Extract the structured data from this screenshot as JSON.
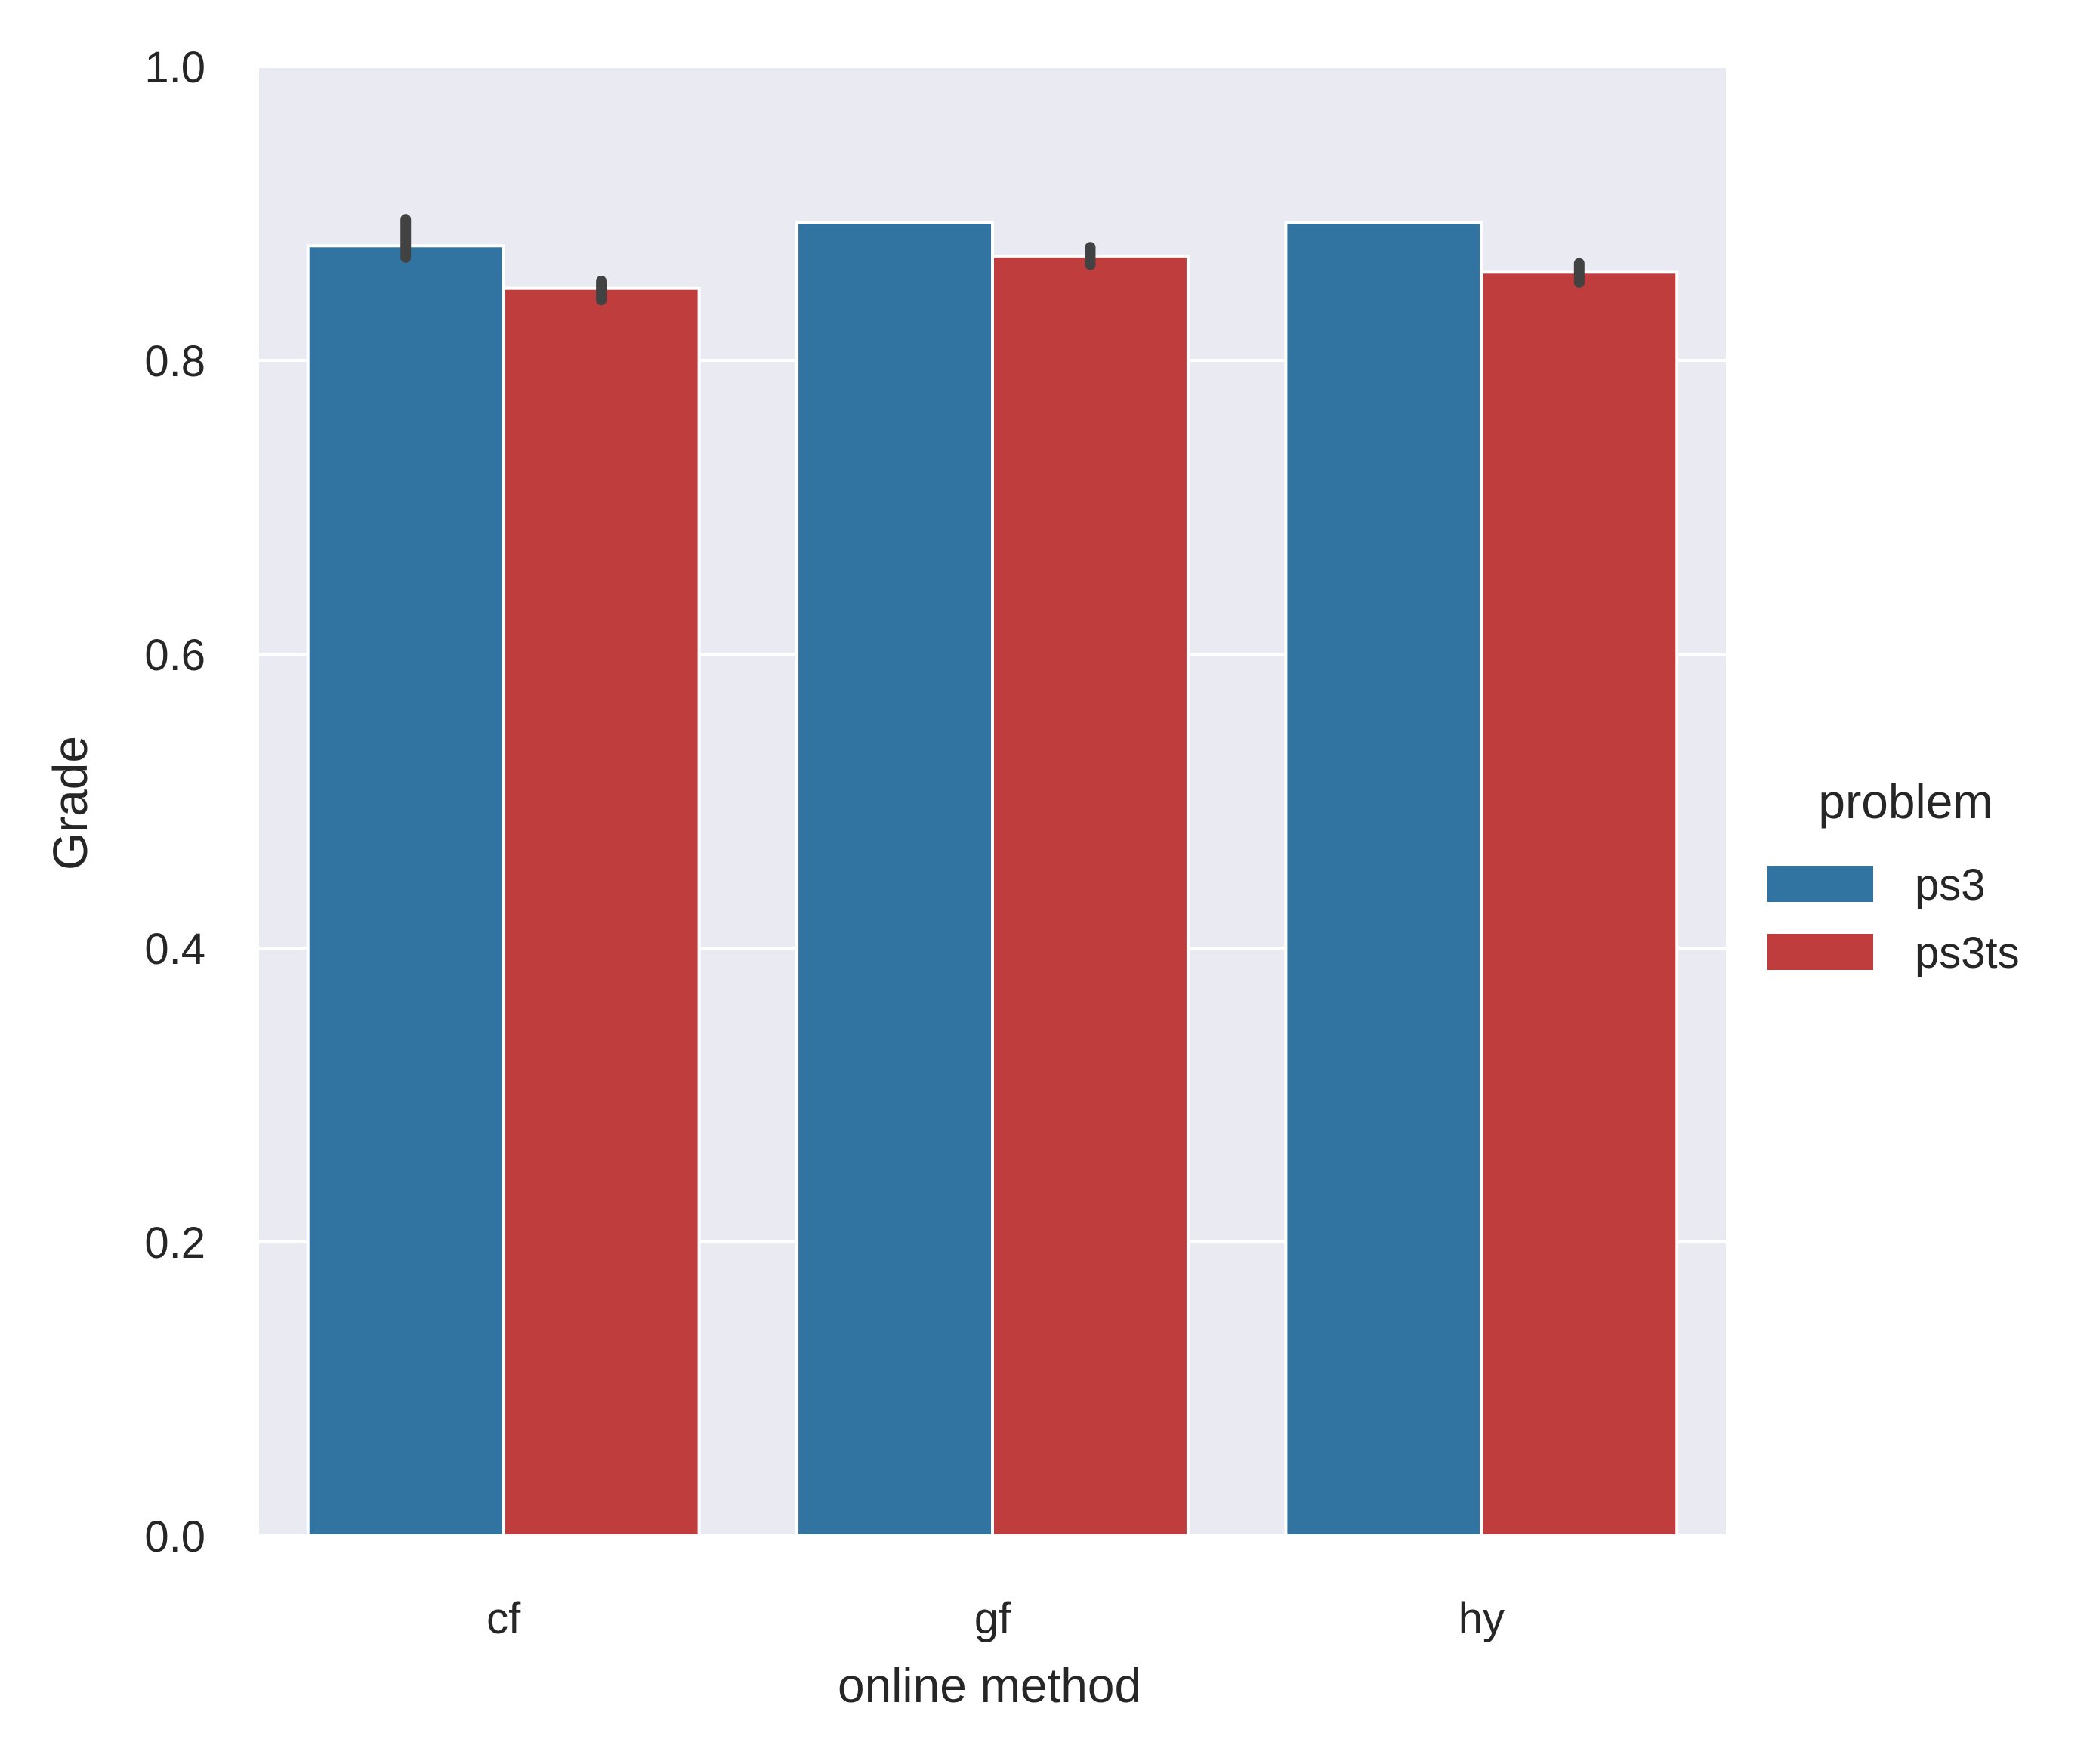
{
  "chart_data": {
    "type": "bar",
    "title": "",
    "xlabel": "online method",
    "ylabel": "Grade",
    "categories": [
      "cf",
      "gf",
      "hy"
    ],
    "series": [
      {
        "name": "ps3",
        "values": [
          0.878,
          0.894,
          0.894
        ],
        "error_low": [
          0.87,
          0.894,
          0.894
        ],
        "error_high": [
          0.896,
          0.894,
          0.894
        ]
      },
      {
        "name": "ps3ts",
        "values": [
          0.849,
          0.871,
          0.86
        ],
        "error_low": [
          0.841,
          0.865,
          0.853
        ],
        "error_high": [
          0.854,
          0.877,
          0.866
        ]
      }
    ],
    "ylim": [
      0.0,
      1.0
    ],
    "yticks": [
      "0.0",
      "0.2",
      "0.4",
      "0.6",
      "0.8",
      "1.0"
    ],
    "ytick_values": [
      0.0,
      0.2,
      0.4,
      0.6,
      0.8,
      1.0
    ],
    "grid": true,
    "legend": {
      "title": "problem",
      "placement": "right"
    },
    "colors": {
      "ps3": "#3274a1",
      "ps3ts": "#c03d3e",
      "plot_background": "#eaeaf2",
      "grid": "#ffffff",
      "error_bar": "#424242"
    }
  }
}
